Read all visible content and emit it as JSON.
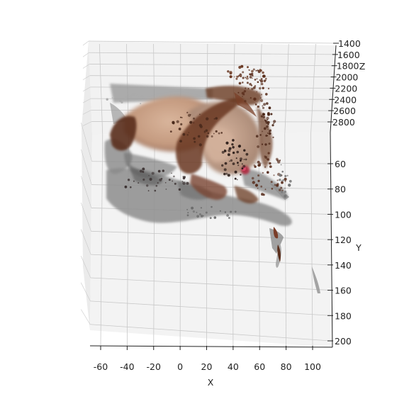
{
  "chart_data": {
    "type": "scatter",
    "projection": "3d",
    "title": "",
    "xlabel": "X",
    "ylabel": "Y",
    "zlabel": "Z",
    "x_ticks": [
      -60,
      -40,
      -20,
      0,
      20,
      40,
      60,
      80,
      100
    ],
    "y_ticks": [
      60,
      80,
      100,
      120,
      140,
      160,
      180,
      200
    ],
    "z_ticks": [
      1400,
      1600,
      1800,
      2000,
      2200,
      2400,
      2600,
      2800
    ],
    "xlim": [
      -68,
      112
    ],
    "ylim": [
      42,
      202
    ],
    "zlim": [
      1400,
      2900
    ],
    "grid": true,
    "legend": "none",
    "colors": {
      "pane": "#f2f2f2",
      "grid": "#c8c8c8",
      "skin": "#c8a184",
      "hair": "#6b3a24",
      "shadow": "#8a8a8a",
      "marker": "#b0203a"
    },
    "point_cloud": [
      {
        "x": -40,
        "y": 60,
        "z": 2500,
        "color": "#9a9a9a"
      },
      {
        "x": -30,
        "y": 55,
        "z": 2400,
        "color": "#b6a08f"
      },
      {
        "x": -10,
        "y": 58,
        "z": 2300,
        "color": "#c8a184"
      },
      {
        "x": 5,
        "y": 60,
        "z": 2250,
        "color": "#d0ab8f"
      },
      {
        "x": 20,
        "y": 62,
        "z": 2250,
        "color": "#b08a72"
      },
      {
        "x": 40,
        "y": 65,
        "z": 2150,
        "color": "#6b3a24"
      },
      {
        "x": 55,
        "y": 68,
        "z": 2100,
        "color": "#caa186"
      },
      {
        "x": 65,
        "y": 75,
        "z": 2200,
        "color": "#8a5238"
      },
      {
        "x": 70,
        "y": 65,
        "z": 2250,
        "color": "#d2b3a0"
      },
      {
        "x": 55,
        "y": 90,
        "z": 2300,
        "color": "#7a4630"
      },
      {
        "x": -50,
        "y": 70,
        "z": 2500,
        "color": "#5a2e1c"
      },
      {
        "x": -55,
        "y": 80,
        "z": 2600,
        "color": "#8a8a8a"
      },
      {
        "x": -35,
        "y": 90,
        "z": 2600,
        "color": "#8e8e8e"
      },
      {
        "x": 10,
        "y": 95,
        "z": 2500,
        "color": "#9a9a9a"
      },
      {
        "x": 85,
        "y": 130,
        "z": 2600,
        "color": "#8a8a8a"
      },
      {
        "x": 105,
        "y": 160,
        "z": 2700,
        "color": "#999999"
      },
      {
        "x": 60,
        "y": 70,
        "z": 2180,
        "color": "#b0203a"
      }
    ]
  }
}
